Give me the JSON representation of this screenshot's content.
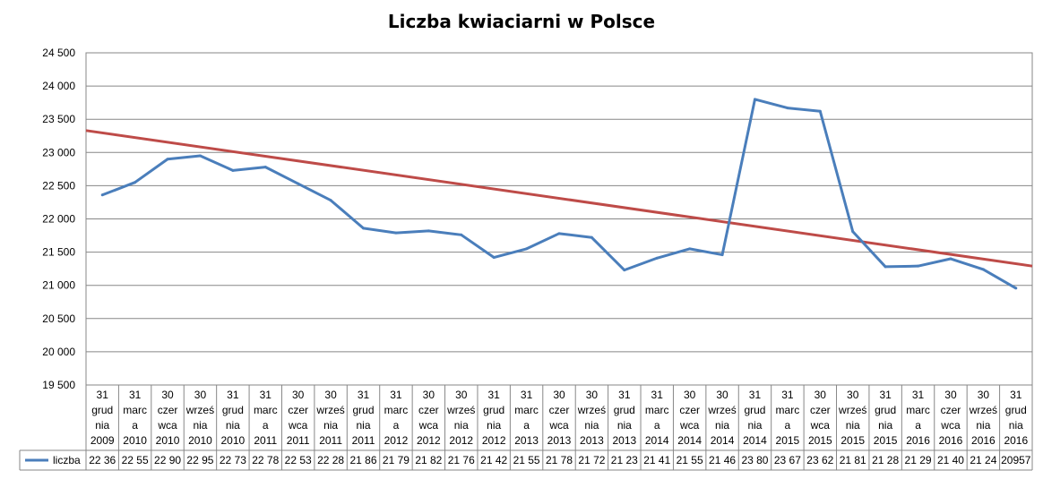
{
  "chart_data": {
    "type": "line",
    "title": "Liczba kwiaciarni w Polsce",
    "ylim": [
      19500,
      24500
    ],
    "y_tick_labels": [
      "19 500",
      "20 000",
      "20 500",
      "21 000",
      "21 500",
      "22 000",
      "22 500",
      "23 000",
      "23 500",
      "24 000",
      "24 500"
    ],
    "y_ticks": [
      19500,
      20000,
      20500,
      21000,
      21500,
      22000,
      22500,
      23000,
      23500,
      24000,
      24500
    ],
    "grid": true,
    "legend": "bottom-left (data table)",
    "categories": [
      [
        "31",
        "grud",
        "nia",
        "2009"
      ],
      [
        "31",
        "marc",
        "a",
        "2010"
      ],
      [
        "30",
        "czer",
        "wca",
        "2010"
      ],
      [
        "30",
        "wrześ",
        "nia",
        "2010"
      ],
      [
        "31",
        "grud",
        "nia",
        "2010"
      ],
      [
        "31",
        "marc",
        "a",
        "2011"
      ],
      [
        "30",
        "czer",
        "wca",
        "2011"
      ],
      [
        "30",
        "wrześ",
        "nia",
        "2011"
      ],
      [
        "31",
        "grud",
        "nia",
        "2011"
      ],
      [
        "31",
        "marc",
        "a",
        "2012"
      ],
      [
        "30",
        "czer",
        "wca",
        "2012"
      ],
      [
        "30",
        "wrześ",
        "nia",
        "2012"
      ],
      [
        "31",
        "grud",
        "nia",
        "2012"
      ],
      [
        "31",
        "marc",
        "a",
        "2013"
      ],
      [
        "30",
        "czer",
        "wca",
        "2013"
      ],
      [
        "30",
        "wrześ",
        "nia",
        "2013"
      ],
      [
        "31",
        "grud",
        "nia",
        "2013"
      ],
      [
        "31",
        "marc",
        "a",
        "2014"
      ],
      [
        "30",
        "czer",
        "wca",
        "2014"
      ],
      [
        "30",
        "wrześ",
        "nia",
        "2014"
      ],
      [
        "31",
        "grud",
        "nia",
        "2014"
      ],
      [
        "31",
        "marc",
        "a",
        "2015"
      ],
      [
        "30",
        "czer",
        "wca",
        "2015"
      ],
      [
        "30",
        "wrześ",
        "nia",
        "2015"
      ],
      [
        "31",
        "grud",
        "nia",
        "2015"
      ],
      [
        "31",
        "marc",
        "a",
        "2016"
      ],
      [
        "30",
        "czer",
        "wca",
        "2016"
      ],
      [
        "30",
        "wrześ",
        "nia",
        "2016"
      ],
      [
        "31",
        "grud",
        "nia",
        "2016"
      ]
    ],
    "series": [
      {
        "name": "liczba",
        "color": "#4a7ebb",
        "values": [
          22360,
          22550,
          22900,
          22950,
          22730,
          22780,
          22530,
          22280,
          21860,
          21790,
          21820,
          21760,
          21420,
          21550,
          21780,
          21720,
          21230,
          21410,
          21550,
          21460,
          23800,
          23670,
          23620,
          21810,
          21280,
          21290,
          21400,
          21240,
          20957
        ],
        "table_labels": [
          "22 36",
          "22 55",
          "22 90",
          "22 95",
          "22 73",
          "22 78",
          "22 53",
          "22 28",
          "21 86",
          "21 79",
          "21 82",
          "21 76",
          "21 42",
          "21 55",
          "21 78",
          "21 72",
          "21 23",
          "21 41",
          "21 55",
          "21 46",
          "23 80",
          "23 67",
          "23 62",
          "21 81",
          "21 28",
          "21 29",
          "21 40",
          "21 24",
          "20957"
        ]
      }
    ],
    "trendline": {
      "type": "linear",
      "color": "#be4b48",
      "start_value": 23330,
      "end_value": 21290
    }
  }
}
